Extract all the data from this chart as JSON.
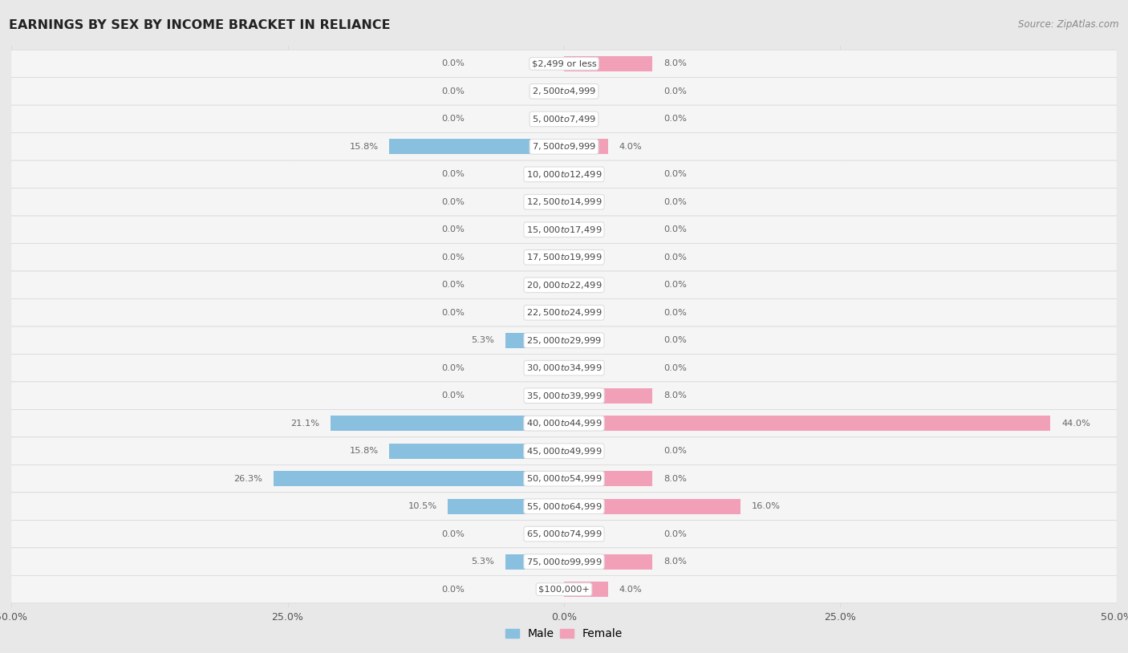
{
  "title": "EARNINGS BY SEX BY INCOME BRACKET IN RELIANCE",
  "source": "Source: ZipAtlas.com",
  "categories": [
    "$2,499 or less",
    "$2,500 to $4,999",
    "$5,000 to $7,499",
    "$7,500 to $9,999",
    "$10,000 to $12,499",
    "$12,500 to $14,999",
    "$15,000 to $17,499",
    "$17,500 to $19,999",
    "$20,000 to $22,499",
    "$22,500 to $24,999",
    "$25,000 to $29,999",
    "$30,000 to $34,999",
    "$35,000 to $39,999",
    "$40,000 to $44,999",
    "$45,000 to $49,999",
    "$50,000 to $54,999",
    "$55,000 to $64,999",
    "$65,000 to $74,999",
    "$75,000 to $99,999",
    "$100,000+"
  ],
  "male_values": [
    0.0,
    0.0,
    0.0,
    15.8,
    0.0,
    0.0,
    0.0,
    0.0,
    0.0,
    0.0,
    5.3,
    0.0,
    0.0,
    21.1,
    15.8,
    26.3,
    10.5,
    0.0,
    5.3,
    0.0
  ],
  "female_values": [
    8.0,
    0.0,
    0.0,
    4.0,
    0.0,
    0.0,
    0.0,
    0.0,
    0.0,
    0.0,
    0.0,
    0.0,
    8.0,
    44.0,
    0.0,
    8.0,
    16.0,
    0.0,
    8.0,
    4.0
  ],
  "male_color": "#89bfdf",
  "female_color": "#f2a0b8",
  "male_bar_color": "#a8cfe8",
  "female_bar_color": "#f4b8ca",
  "xlim": 50.0,
  "background_color": "#e8e8e8",
  "row_bg_color": "#f5f5f5",
  "row_border_color": "#d8d8d8",
  "legend_male": "Male",
  "legend_female": "Female",
  "label_color": "#666666",
  "category_label_color": "#444444",
  "title_color": "#222222",
  "source_color": "#888888"
}
